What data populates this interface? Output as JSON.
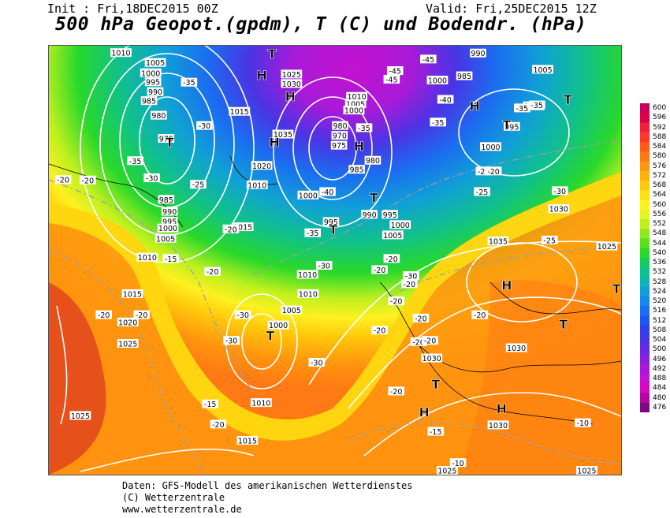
{
  "header": {
    "init": "Init : Fri,18DEC2015 00Z",
    "valid": "Valid: Fri,25DEC2015 12Z",
    "title": "500 hPa Geopot.(gpdm), T (C) und Bodendr. (hPa)"
  },
  "colorbar": {
    "labels": [
      "600",
      "596",
      "592",
      "588",
      "584",
      "580",
      "576",
      "572",
      "568",
      "564",
      "560",
      "556",
      "552",
      "548",
      "544",
      "540",
      "536",
      "532",
      "528",
      "524",
      "520",
      "516",
      "512",
      "508",
      "504",
      "500",
      "496",
      "492",
      "488",
      "484",
      "480",
      "476"
    ],
    "colors": [
      "#c8005a",
      "#e0004a",
      "#f0203a",
      "#ff3a2a",
      "#ff5a1e",
      "#ff7a14",
      "#ff960e",
      "#ffb00a",
      "#ffc80a",
      "#ffe010",
      "#fff020",
      "#e6f51e",
      "#bef01e",
      "#8ee81e",
      "#5ae01e",
      "#28d82a",
      "#14cc5a",
      "#10c08c",
      "#10b4b8",
      "#10a0d6",
      "#1488ee",
      "#1a6ef0",
      "#2056f0",
      "#3040ea",
      "#4a34e4",
      "#6a2ae0",
      "#8a22dc",
      "#a81ad8",
      "#c412d0",
      "#d20ac0",
      "#b208a0",
      "#800880"
    ]
  },
  "map": {
    "pressure_labels": [
      {
        "text": "1010",
        "x": 12.6,
        "y": 1.6
      },
      {
        "text": "1005",
        "x": 18.6,
        "y": 3.9
      },
      {
        "text": "1000",
        "x": 17.8,
        "y": 6.3
      },
      {
        "text": "995",
        "x": 18.2,
        "y": 8.4
      },
      {
        "text": "990",
        "x": 18.6,
        "y": 10.7
      },
      {
        "text": "985",
        "x": 17.5,
        "y": 12.8
      },
      {
        "text": "980",
        "x": 19.2,
        "y": 16.2
      },
      {
        "text": "975",
        "x": 20.5,
        "y": 21.6
      },
      {
        "text": "985",
        "x": 20.5,
        "y": 35.8
      },
      {
        "text": "990",
        "x": 21.1,
        "y": 38.6
      },
      {
        "text": "995",
        "x": 21.1,
        "y": 40.9
      },
      {
        "text": "1000",
        "x": 20.8,
        "y": 42.5
      },
      {
        "text": "1005",
        "x": 20.4,
        "y": 44.9
      },
      {
        "text": "1010",
        "x": 17.2,
        "y": 49.3
      },
      {
        "text": "1015",
        "x": 14.6,
        "y": 57.8
      },
      {
        "text": "1020",
        "x": 13.8,
        "y": 64.4
      },
      {
        "text": "1025",
        "x": 13.8,
        "y": 69.4
      },
      {
        "text": "1025",
        "x": 5.5,
        "y": 86.2
      },
      {
        "text": "1015",
        "x": 33.3,
        "y": 15.3
      },
      {
        "text": "1020",
        "x": 37.2,
        "y": 27.9
      },
      {
        "text": "1010",
        "x": 36.4,
        "y": 32.4
      },
      {
        "text": "1015",
        "x": 33.9,
        "y": 42.2
      },
      {
        "text": "1025",
        "x": 42.4,
        "y": 6.6
      },
      {
        "text": "1030",
        "x": 42.4,
        "y": 8.8
      },
      {
        "text": "1035",
        "x": 40.9,
        "y": 20.6
      },
      {
        "text": "1000",
        "x": 45.3,
        "y": 34.8
      },
      {
        "text": "995",
        "x": 49.3,
        "y": 41.0
      },
      {
        "text": "990",
        "x": 56.0,
        "y": 39.3
      },
      {
        "text": "995",
        "x": 59.6,
        "y": 39.3
      },
      {
        "text": "1000",
        "x": 61.4,
        "y": 41.7
      },
      {
        "text": "1005",
        "x": 60.1,
        "y": 44.1
      },
      {
        "text": "985",
        "x": 53.8,
        "y": 28.8
      },
      {
        "text": "980",
        "x": 56.6,
        "y": 26.7
      },
      {
        "text": "980",
        "x": 50.9,
        "y": 18.6
      },
      {
        "text": "975",
        "x": 50.7,
        "y": 23.2
      },
      {
        "text": "970",
        "x": 50.8,
        "y": 20.9
      },
      {
        "text": "1010",
        "x": 53.8,
        "y": 11.8
      },
      {
        "text": "1005",
        "x": 53.6,
        "y": 13.5
      },
      {
        "text": "1000",
        "x": 53.3,
        "y": 15.0
      },
      {
        "text": "1010",
        "x": 45.2,
        "y": 53.3
      },
      {
        "text": "1010",
        "x": 45.3,
        "y": 57.8
      },
      {
        "text": "1005",
        "x": 42.4,
        "y": 61.6
      },
      {
        "text": "1000",
        "x": 40.1,
        "y": 65.1
      },
      {
        "text": "1010",
        "x": 37.1,
        "y": 83.2
      },
      {
        "text": "1015",
        "x": 34.7,
        "y": 92.0
      },
      {
        "text": "990",
        "x": 75.0,
        "y": 1.7
      },
      {
        "text": "985",
        "x": 72.6,
        "y": 7.0
      },
      {
        "text": "1000",
        "x": 67.9,
        "y": 8.0
      },
      {
        "text": "1005",
        "x": 86.3,
        "y": 5.5
      },
      {
        "text": "1000",
        "x": 84.7,
        "y": 14.0
      },
      {
        "text": "995",
        "x": 80.9,
        "y": 18.8
      },
      {
        "text": "1000",
        "x": 77.2,
        "y": 23.5
      },
      {
        "text": "1030",
        "x": 89.1,
        "y": 38.0
      },
      {
        "text": "1035",
        "x": 78.5,
        "y": 45.5
      },
      {
        "text": "1025",
        "x": 97.5,
        "y": 46.7
      },
      {
        "text": "1030",
        "x": 81.7,
        "y": 70.4
      },
      {
        "text": "1030",
        "x": 66.9,
        "y": 72.8
      },
      {
        "text": "1030",
        "x": 78.5,
        "y": 88.4
      },
      {
        "text": "1025",
        "x": 69.6,
        "y": 99.0
      },
      {
        "text": "1025",
        "x": 94.0,
        "y": 99.0
      }
    ],
    "temp_labels": [
      {
        "text": "-35",
        "x": 24.5,
        "y": 8.5
      },
      {
        "text": "-30",
        "x": 27.2,
        "y": 18.6
      },
      {
        "text": "-35",
        "x": 15.1,
        "y": 26.8
      },
      {
        "text": "-30",
        "x": 18.0,
        "y": 30.8
      },
      {
        "text": "-25",
        "x": 26.1,
        "y": 32.3
      },
      {
        "text": "-20",
        "x": 2.5,
        "y": 31.2
      },
      {
        "text": "-20",
        "x": 31.8,
        "y": 42.7
      },
      {
        "text": "-15",
        "x": 21.3,
        "y": 49.6
      },
      {
        "text": "-20",
        "x": 28.6,
        "y": 52.6
      },
      {
        "text": "-30",
        "x": 33.9,
        "y": 62.7
      },
      {
        "text": "-30",
        "x": 31.9,
        "y": 68.7
      },
      {
        "text": "-20",
        "x": 16.2,
        "y": 62.7
      },
      {
        "text": "-15",
        "x": 28.2,
        "y": 83.5
      },
      {
        "text": "-20",
        "x": 29.6,
        "y": 88.2
      },
      {
        "text": "-40",
        "x": 48.7,
        "y": 34.0
      },
      {
        "text": "-35",
        "x": 46.1,
        "y": 43.6
      },
      {
        "text": "-30",
        "x": 48.1,
        "y": 51.2
      },
      {
        "text": "-20",
        "x": 57.8,
        "y": 52.2
      },
      {
        "text": "-20",
        "x": 59.9,
        "y": 49.6
      },
      {
        "text": "-30",
        "x": 63.3,
        "y": 53.6
      },
      {
        "text": "-20",
        "x": 63.0,
        "y": 55.5
      },
      {
        "text": "-20",
        "x": 60.7,
        "y": 59.5
      },
      {
        "text": "-20",
        "x": 57.8,
        "y": 66.3
      },
      {
        "text": "-30",
        "x": 46.8,
        "y": 73.8
      },
      {
        "text": "-20",
        "x": 65.0,
        "y": 63.5
      },
      {
        "text": "-20",
        "x": 64.6,
        "y": 69.0
      },
      {
        "text": "-20",
        "x": 66.6,
        "y": 68.7
      },
      {
        "text": "-20",
        "x": 75.3,
        "y": 62.7
      },
      {
        "text": "-20",
        "x": 60.7,
        "y": 80.5
      },
      {
        "text": "-15",
        "x": 67.6,
        "y": 89.9
      },
      {
        "text": "-10",
        "x": 71.5,
        "y": 97.2
      },
      {
        "text": "-10",
        "x": 93.3,
        "y": 87.9
      },
      {
        "text": "-20",
        "x": 9.6,
        "y": 62.7
      },
      {
        "text": "-45",
        "x": 66.3,
        "y": 3.1
      },
      {
        "text": "-45",
        "x": 60.5,
        "y": 5.8
      },
      {
        "text": "-45",
        "x": 59.9,
        "y": 7.8
      },
      {
        "text": "-40",
        "x": 69.3,
        "y": 12.5
      },
      {
        "text": "-35",
        "x": 68.0,
        "y": 17.8
      },
      {
        "text": "-35",
        "x": 55.1,
        "y": 19.1
      },
      {
        "text": "-35",
        "x": 82.7,
        "y": 14.5
      },
      {
        "text": "-35",
        "x": 85.3,
        "y": 13.8
      },
      {
        "text": "-25",
        "x": 76.0,
        "y": 29.2
      },
      {
        "text": "-20",
        "x": 77.7,
        "y": 29.2
      },
      {
        "text": "-25",
        "x": 75.7,
        "y": 34.0
      },
      {
        "text": "-30",
        "x": 89.3,
        "y": 33.8
      },
      {
        "text": "-25",
        "x": 87.5,
        "y": 45.3
      },
      {
        "text": "-20",
        "x": 6.8,
        "y": 31.3
      }
    ],
    "centers": [
      {
        "text": "H",
        "x": 37.2,
        "y": 6.8
      },
      {
        "text": "H",
        "x": 42.2,
        "y": 11.8
      },
      {
        "text": "H",
        "x": 39.4,
        "y": 22.4
      },
      {
        "text": "T",
        "x": 21.1,
        "y": 22.4
      },
      {
        "text": "H",
        "x": 54.2,
        "y": 23.3
      },
      {
        "text": "T",
        "x": 56.8,
        "y": 35.4
      },
      {
        "text": "T",
        "x": 49.7,
        "y": 42.8
      },
      {
        "text": "T",
        "x": 38.7,
        "y": 67.6
      },
      {
        "text": "T",
        "x": 39.0,
        "y": 1.8
      },
      {
        "text": "H",
        "x": 74.4,
        "y": 14.0
      },
      {
        "text": "T",
        "x": 80.0,
        "y": 18.4
      },
      {
        "text": "T",
        "x": 90.7,
        "y": 12.5
      },
      {
        "text": "H",
        "x": 80.0,
        "y": 55.8
      },
      {
        "text": "T",
        "x": 89.9,
        "y": 64.9
      },
      {
        "text": "T",
        "x": 67.6,
        "y": 78.9
      },
      {
        "text": "H",
        "x": 65.6,
        "y": 85.4
      },
      {
        "text": "H",
        "x": 79.1,
        "y": 84.6
      },
      {
        "text": "T",
        "x": 99.2,
        "y": 56.6
      }
    ]
  },
  "footer": {
    "line1": "Daten: GFS-Modell des amerikanischen Wetterdienstes",
    "line2": "(C) Wetterzentrale",
    "line3": "www.wetterzentrale.de"
  }
}
